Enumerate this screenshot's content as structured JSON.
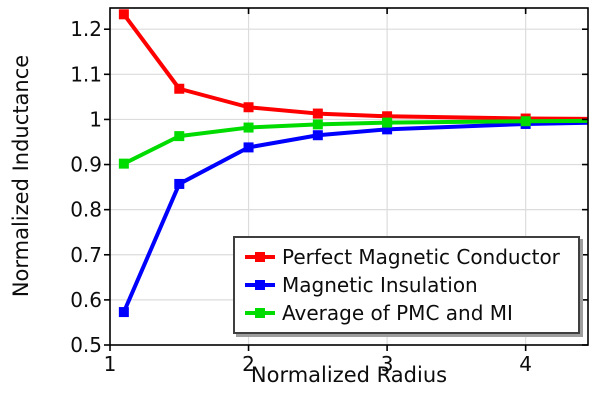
{
  "figure": {
    "background": "#ffffff",
    "frame_color": "#000000",
    "grid_color": "#dcdcdc"
  },
  "chart_data": {
    "type": "line",
    "title": "",
    "xlabel": "Normalized Radius",
    "ylabel": "Normalized Inductance",
    "xlim": [
      1,
      4.45
    ],
    "ylim": [
      0.5,
      1.247
    ],
    "grid": true,
    "legend_position": "inside lower right",
    "x_ticks": [
      1,
      2,
      3,
      4
    ],
    "x_tick_labels": [
      "1",
      "2",
      "3",
      "4"
    ],
    "y_ticks": [
      0.5,
      0.6,
      0.7,
      0.8,
      0.9,
      1.0,
      1.1,
      1.2
    ],
    "y_tick_labels": [
      "0.5",
      "0.6",
      "0.7",
      "0.8",
      "0.9",
      "1",
      "1.1",
      "1.2"
    ],
    "x": [
      1.1,
      1.5,
      2,
      2.5,
      3,
      4,
      4.5
    ],
    "series": [
      {
        "name": "Perfect Magnetic Conductor",
        "color": "#ff0000",
        "marker": "square",
        "values": [
          1.233,
          1.068,
          1.027,
          1.013,
          1.007,
          1.002,
          1.001
        ]
      },
      {
        "name": "Magnetic Insulation",
        "color": "#0000ff",
        "marker": "square",
        "values": [
          0.573,
          0.857,
          0.938,
          0.965,
          0.978,
          0.99,
          0.993
        ]
      },
      {
        "name": "Average of PMC and MI",
        "color": "#00dc00",
        "marker": "square",
        "values": [
          0.902,
          0.963,
          0.982,
          0.989,
          0.993,
          0.996,
          0.997
        ]
      }
    ]
  }
}
